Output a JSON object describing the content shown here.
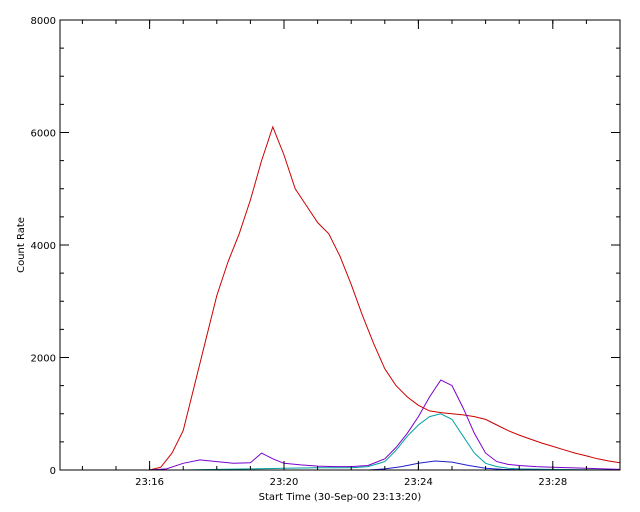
{
  "chart_data": {
    "type": "line",
    "title": "",
    "xlabel": "Start Time (30-Sep-00 23:13:20)",
    "ylabel": "Count Rate",
    "x_unit": "minutes of day (23:13:20 start)",
    "xlim": [
      "23:13:20",
      "23:30:00"
    ],
    "ylim": [
      0,
      8000
    ],
    "x_tick_labels": [
      "23:16",
      "23:20",
      "23:24",
      "23:28"
    ],
    "x_tick_values": [
      "23:16",
      "23:20",
      "23:24",
      "23:28"
    ],
    "y_tick_values": [
      0,
      2000,
      4000,
      6000,
      8000
    ],
    "y_tick_labels": [
      "0",
      "2000",
      "4000",
      "6000",
      "8000"
    ],
    "grid": false,
    "legend": "none",
    "series": [
      {
        "color": "#cc0000",
        "x": [
          "23:13:20",
          "23:16:00",
          "23:16:20",
          "23:16:40",
          "23:17:00",
          "23:17:20",
          "23:17:40",
          "23:18:00",
          "23:18:20",
          "23:18:40",
          "23:19:00",
          "23:19:20",
          "23:19:40",
          "23:20:00",
          "23:20:20",
          "23:20:40",
          "23:21:00",
          "23:21:20",
          "23:21:40",
          "23:22:00",
          "23:22:20",
          "23:22:40",
          "23:23:00",
          "23:23:20",
          "23:23:40",
          "23:24:00",
          "23:24:20",
          "23:24:40",
          "23:25:00",
          "23:25:20",
          "23:25:40",
          "23:26:00",
          "23:26:20",
          "23:26:40",
          "23:27:00",
          "23:27:20",
          "23:27:40",
          "23:28:00",
          "23:28:20",
          "23:28:40",
          "23:29:00",
          "23:29:20",
          "23:29:40",
          "23:30:00"
        ],
        "y": [
          0,
          0,
          50,
          300,
          700,
          1500,
          2300,
          3100,
          3700,
          4200,
          4800,
          5500,
          6100,
          5600,
          5000,
          4700,
          4400,
          4200,
          3800,
          3300,
          2750,
          2250,
          1800,
          1500,
          1300,
          1150,
          1050,
          1020,
          1000,
          980,
          950,
          900,
          800,
          700,
          620,
          550,
          480,
          420,
          360,
          300,
          250,
          200,
          160,
          130
        ]
      },
      {
        "color": "#7a00cc",
        "x": [
          "23:13:20",
          "23:16:00",
          "23:16:30",
          "23:17:00",
          "23:17:30",
          "23:18:00",
          "23:18:30",
          "23:19:00",
          "23:19:20",
          "23:19:40",
          "23:20:00",
          "23:20:30",
          "23:21:00",
          "23:21:30",
          "23:22:00",
          "23:22:30",
          "23:23:00",
          "23:23:20",
          "23:23:40",
          "23:24:00",
          "23:24:20",
          "23:24:40",
          "23:25:00",
          "23:25:20",
          "23:25:40",
          "23:26:00",
          "23:26:20",
          "23:26:40",
          "23:27:00",
          "23:27:30",
          "23:28:00",
          "23:28:30",
          "23:29:00",
          "23:29:30",
          "23:30:00"
        ],
        "y": [
          0,
          0,
          20,
          120,
          180,
          150,
          120,
          130,
          300,
          200,
          120,
          90,
          70,
          60,
          60,
          80,
          200,
          400,
          650,
          950,
          1300,
          1600,
          1500,
          1100,
          650,
          300,
          150,
          100,
          80,
          60,
          50,
          40,
          30,
          20,
          10
        ]
      },
      {
        "color": "#00a0a0",
        "x": [
          "23:13:20",
          "23:17:00",
          "23:18:00",
          "23:19:00",
          "23:20:00",
          "23:21:00",
          "23:22:00",
          "23:22:30",
          "23:23:00",
          "23:23:20",
          "23:23:40",
          "23:24:00",
          "23:24:20",
          "23:24:40",
          "23:25:00",
          "23:25:20",
          "23:25:40",
          "23:26:00",
          "23:26:20",
          "23:26:40",
          "23:27:00",
          "23:28:00",
          "23:29:00",
          "23:30:00"
        ],
        "y": [
          0,
          0,
          10,
          20,
          30,
          40,
          40,
          60,
          150,
          350,
          600,
          800,
          950,
          1000,
          900,
          600,
          300,
          120,
          60,
          30,
          20,
          10,
          5,
          0
        ]
      },
      {
        "color": "#2020cc",
        "x": [
          "23:13:20",
          "23:22:30",
          "23:23:00",
          "23:23:30",
          "23:24:00",
          "23:24:30",
          "23:25:00",
          "23:25:30",
          "23:26:00",
          "23:26:30",
          "23:27:00",
          "23:28:00",
          "23:30:00"
        ],
        "y": [
          0,
          0,
          20,
          60,
          120,
          160,
          140,
          80,
          30,
          10,
          5,
          0,
          0
        ]
      }
    ]
  }
}
